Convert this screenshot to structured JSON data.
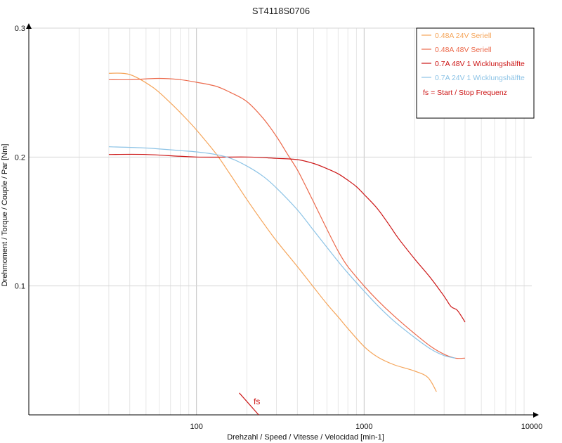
{
  "chart_data": {
    "type": "line",
    "title": "ST4118S0706",
    "xlabel": "Drehzahl / Speed / Vitesse / Velocidad [min-1]",
    "ylabel": "Drehmoment / Torque / Couple / Par [Nm]",
    "x_scale": "log",
    "xlim": [
      10,
      10000
    ],
    "ylim": [
      0,
      0.3
    ],
    "x_ticks": [
      {
        "value": 100,
        "label": "100"
      },
      {
        "value": 1000,
        "label": "1000"
      },
      {
        "value": 10000,
        "label": "10000"
      }
    ],
    "y_ticks": [
      {
        "value": 0.1,
        "label": "0.1"
      },
      {
        "value": 0.2,
        "label": "0.2"
      },
      {
        "value": 0.3,
        "label": "0.3"
      }
    ],
    "grid": true,
    "legend_position": "top-right",
    "series": [
      {
        "name": "0.48A  24V  Seriell",
        "color": "#f5a55a",
        "points": [
          [
            30,
            0.265
          ],
          [
            40,
            0.264
          ],
          [
            55,
            0.254
          ],
          [
            70,
            0.242
          ],
          [
            85,
            0.231
          ],
          [
            100,
            0.221
          ],
          [
            130,
            0.203
          ],
          [
            160,
            0.186
          ],
          [
            200,
            0.167
          ],
          [
            250,
            0.149
          ],
          [
            300,
            0.135
          ],
          [
            400,
            0.115
          ],
          [
            500,
            0.099
          ],
          [
            600,
            0.086
          ],
          [
            700,
            0.076
          ],
          [
            800,
            0.067
          ],
          [
            1000,
            0.053
          ],
          [
            1200,
            0.045
          ],
          [
            1500,
            0.039
          ],
          [
            2000,
            0.034
          ],
          [
            2400,
            0.029
          ],
          [
            2700,
            0.018
          ]
        ]
      },
      {
        "name": "0.48A  48V  Seriell",
        "color": "#ec6a4c",
        "points": [
          [
            30,
            0.26
          ],
          [
            40,
            0.26
          ],
          [
            60,
            0.261
          ],
          [
            80,
            0.26
          ],
          [
            100,
            0.258
          ],
          [
            130,
            0.255
          ],
          [
            160,
            0.25
          ],
          [
            200,
            0.243
          ],
          [
            250,
            0.23
          ],
          [
            300,
            0.216
          ],
          [
            350,
            0.202
          ],
          [
            400,
            0.19
          ],
          [
            450,
            0.177
          ],
          [
            500,
            0.165
          ],
          [
            600,
            0.144
          ],
          [
            700,
            0.127
          ],
          [
            800,
            0.115
          ],
          [
            1000,
            0.1
          ],
          [
            1200,
            0.089
          ],
          [
            1500,
            0.077
          ],
          [
            2000,
            0.063
          ],
          [
            2500,
            0.053
          ],
          [
            3000,
            0.047
          ],
          [
            3500,
            0.044
          ],
          [
            4000,
            0.044
          ]
        ]
      },
      {
        "name": "0.7A  48V  1 Wicklungshälfte",
        "color": "#cc1515",
        "points": [
          [
            30,
            0.202
          ],
          [
            50,
            0.202
          ],
          [
            100,
            0.2
          ],
          [
            200,
            0.2
          ],
          [
            300,
            0.199
          ],
          [
            400,
            0.198
          ],
          [
            500,
            0.195
          ],
          [
            600,
            0.191
          ],
          [
            700,
            0.187
          ],
          [
            800,
            0.182
          ],
          [
            900,
            0.177
          ],
          [
            1000,
            0.171
          ],
          [
            1200,
            0.16
          ],
          [
            1400,
            0.148
          ],
          [
            1600,
            0.137
          ],
          [
            2000,
            0.121
          ],
          [
            2500,
            0.106
          ],
          [
            3000,
            0.092
          ],
          [
            3300,
            0.084
          ],
          [
            3600,
            0.081
          ],
          [
            4000,
            0.072
          ]
        ]
      },
      {
        "name": "0.7A  24V  1 Wicklungshälfte",
        "color": "#8cc3e6",
        "points": [
          [
            30,
            0.208
          ],
          [
            50,
            0.207
          ],
          [
            80,
            0.205
          ],
          [
            100,
            0.204
          ],
          [
            130,
            0.202
          ],
          [
            160,
            0.199
          ],
          [
            200,
            0.193
          ],
          [
            250,
            0.185
          ],
          [
            300,
            0.176
          ],
          [
            400,
            0.159
          ],
          [
            500,
            0.143
          ],
          [
            600,
            0.13
          ],
          [
            700,
            0.119
          ],
          [
            800,
            0.11
          ],
          [
            1000,
            0.096
          ],
          [
            1200,
            0.085
          ],
          [
            1500,
            0.073
          ],
          [
            2000,
            0.06
          ],
          [
            2500,
            0.051
          ],
          [
            3000,
            0.046
          ],
          [
            3500,
            0.044
          ]
        ]
      }
    ],
    "annotations": [
      {
        "text": "fs = Start / Stop Frequenz",
        "color": "#cc1515",
        "where": "legend"
      },
      {
        "text": "fs",
        "color": "#cc1515",
        "marker_from": [
          180,
          0.017
        ],
        "marker_to": [
          235,
          0.0
        ]
      }
    ]
  }
}
